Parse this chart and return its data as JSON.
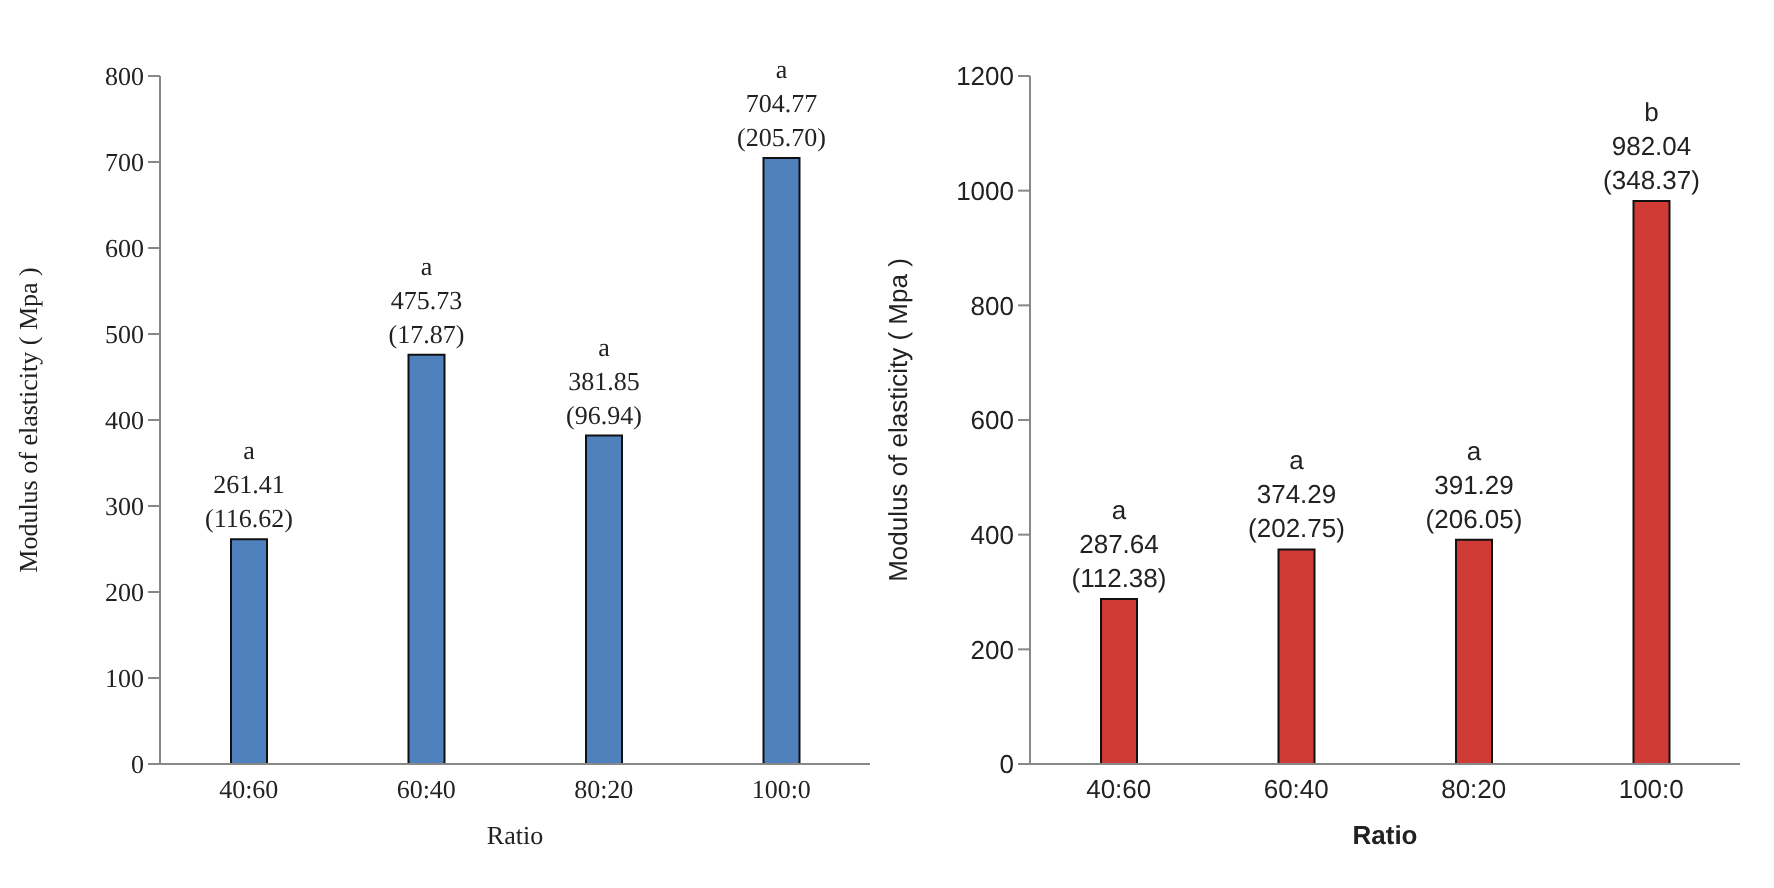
{
  "chart_data": [
    {
      "type": "bar",
      "xlabel": "Ratio",
      "ylabel": "Modulus of elasticity ( Mpa )",
      "categories": [
        "40:60",
        "60:40",
        "80:20",
        "100:0"
      ],
      "values": [
        261.41,
        475.73,
        381.85,
        704.77
      ],
      "color": "#4f81bd",
      "ylim": [
        0,
        800
      ],
      "yticks": [
        0,
        100,
        200,
        300,
        400,
        500,
        600,
        700,
        800
      ],
      "value_labels": [
        "a\n261.41\n(116.62)",
        "a\n475.73\n(17.87)",
        "a\n381.85\n(96.94)",
        "a\n704.77\n(205.70)"
      ]
    },
    {
      "type": "bar",
      "xlabel": "Ratio",
      "ylabel": "Modulus of elasticity ( Mpa )",
      "categories": [
        "40:60",
        "60:40",
        "80:20",
        "100:0"
      ],
      "values": [
        287.64,
        374.29,
        391.29,
        982.04
      ],
      "color": "#d03a35",
      "ylim": [
        0,
        1200
      ],
      "yticks": [
        0,
        200,
        400,
        600,
        800,
        1000,
        1200
      ],
      "value_labels": [
        "a\n287.64\n(112.38)",
        "a\n374.29\n(202.75)",
        "a\n391.29\n(206.05)",
        "b\n982.04\n(348.37)"
      ]
    }
  ]
}
